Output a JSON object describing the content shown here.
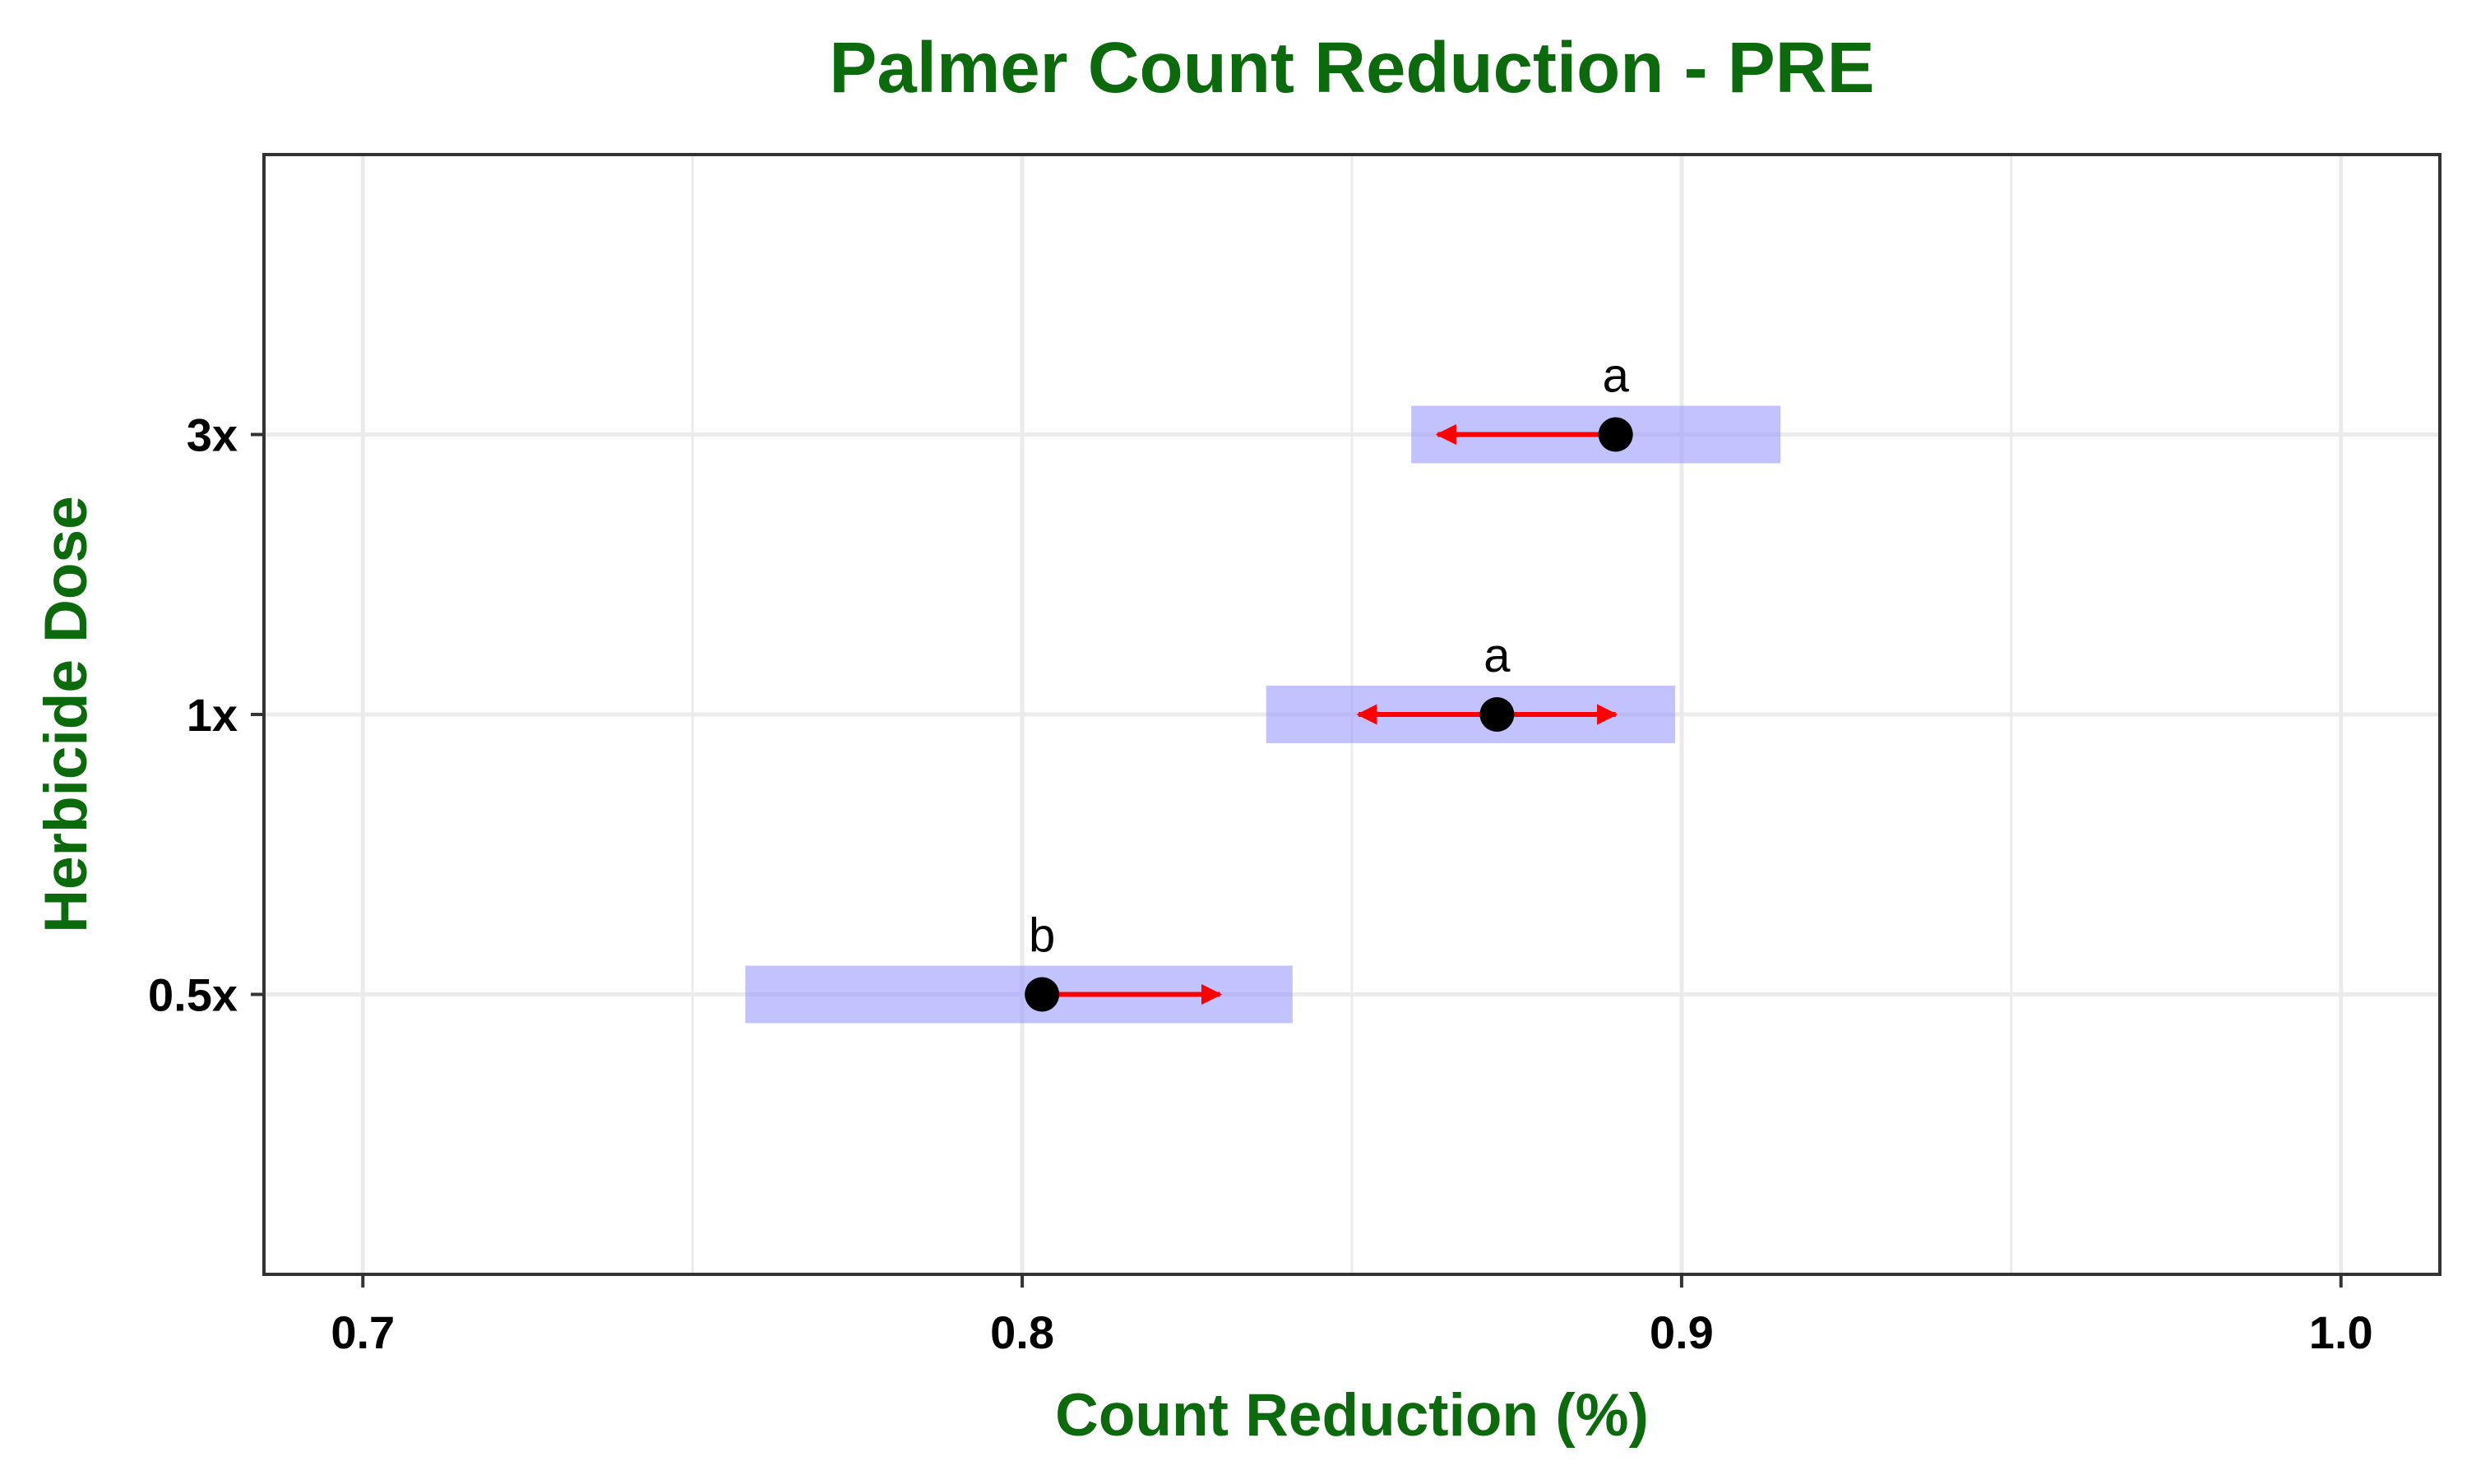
{
  "chart_data": {
    "type": "scatter",
    "title": "Palmer Count Reduction - PRE",
    "xlabel": "Count Reduction (%)",
    "ylabel": "Herbicide Dose",
    "xlim": [
      0.685,
      1.015
    ],
    "x_ticks": [
      "0.7",
      "0.8",
      "0.9",
      "1.0"
    ],
    "x_tick_values": [
      0.7,
      0.8,
      0.9,
      1.0
    ],
    "categories": [
      "0.5x",
      "1x",
      "3x"
    ],
    "grid": true,
    "legend": "none",
    "colors": {
      "interval": "#9999ff",
      "arrow": "#ff0000",
      "point": "#000000",
      "title": "#0b6a0b",
      "grid": "#ebebeb",
      "panel_border": "#333333"
    },
    "points": [
      {
        "category": "0.5x",
        "estimate": 0.803,
        "lower": 0.758,
        "upper": 0.841,
        "arrow_lower": null,
        "arrow_upper": 0.83,
        "letter": "b"
      },
      {
        "category": "1x",
        "estimate": 0.872,
        "lower": 0.837,
        "upper": 0.899,
        "arrow_lower": 0.851,
        "arrow_upper": 0.89,
        "letter": "a"
      },
      {
        "category": "3x",
        "estimate": 0.89,
        "lower": 0.859,
        "upper": 0.915,
        "arrow_lower": 0.863,
        "arrow_upper": null,
        "letter": "a"
      }
    ]
  }
}
